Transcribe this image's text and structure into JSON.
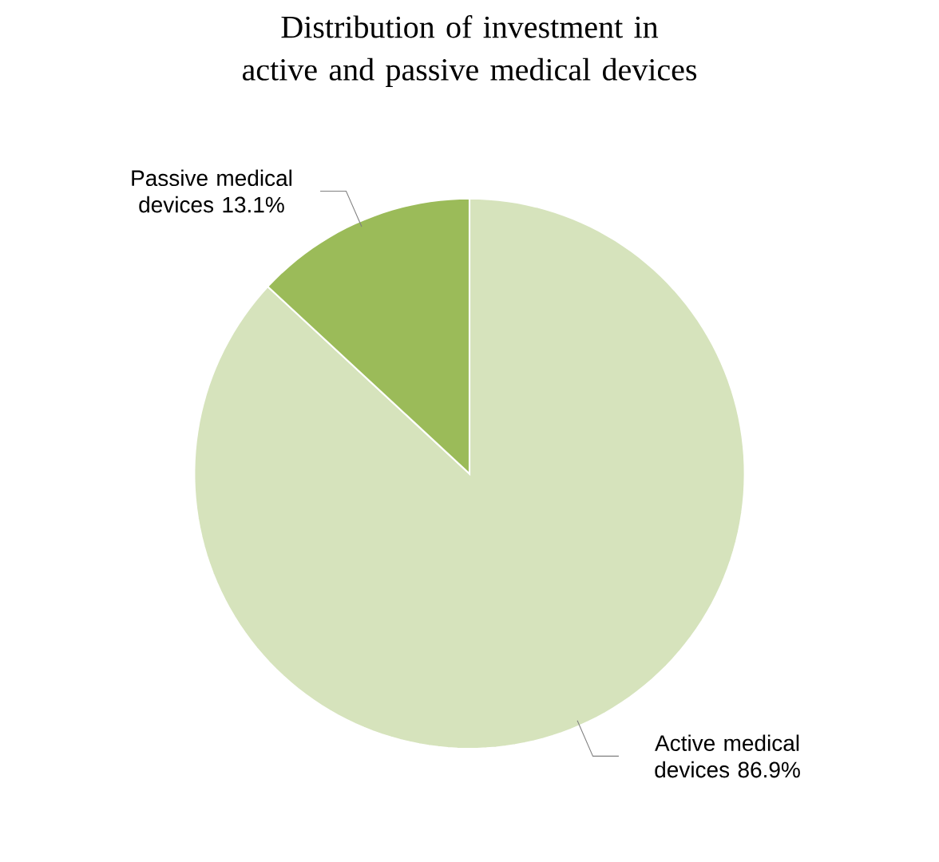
{
  "chart_data": {
    "type": "pie",
    "title": "Distribution of investment in active and passive medical devices",
    "categories": [
      "Active medical devices",
      "Passive medical devices"
    ],
    "values": [
      86.9,
      13.1
    ],
    "colors": [
      "#d6e3bc",
      "#9bbb59"
    ],
    "value_labels": [
      "86.9%",
      "13.1%"
    ]
  }
}
